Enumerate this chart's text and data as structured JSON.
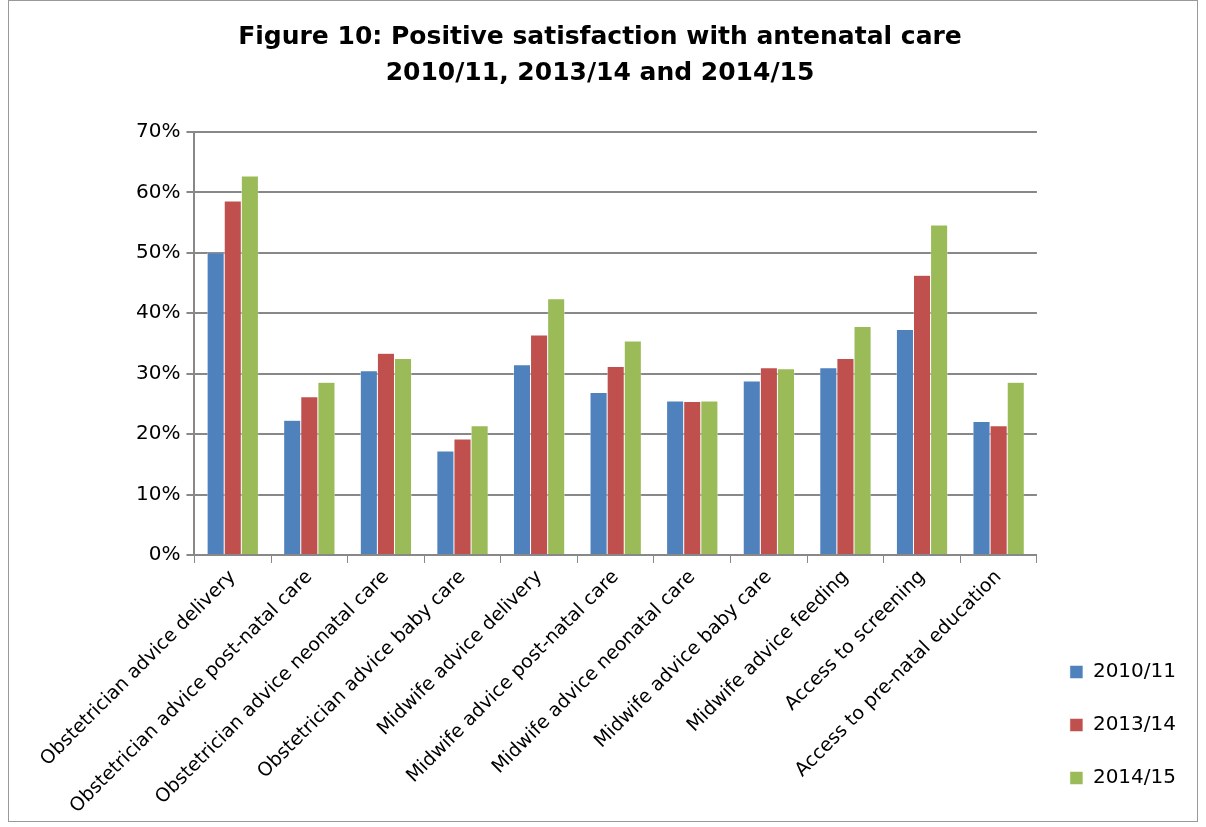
{
  "chart_data": {
    "type": "bar",
    "title": "Figure 10: Positive satisfaction with antenatal care 2010/11, 2013/14 and 2014/15",
    "categories": [
      "Obstetrician advice delivery",
      "Obstetrician advice post-natal care",
      "Obstetrician advice neonatal care",
      "Obstetrician advice baby care",
      "Midwife advice delivery",
      "Midwife advice post-natal care",
      "Midwife advice neonatal care",
      "Midwife advice baby care",
      "Midwife advice feeding",
      "Access to screening",
      "Access to pre-natal education"
    ],
    "series": [
      {
        "name": "2010/11",
        "color": "#4f81bd",
        "values": [
          50.0,
          22.3,
          30.5,
          17.2,
          31.5,
          26.9,
          25.5,
          28.8,
          31.0,
          37.3,
          22.1
        ]
      },
      {
        "name": "2013/14",
        "color": "#c0504d",
        "values": [
          58.6,
          26.2,
          33.4,
          19.2,
          36.4,
          31.2,
          25.4,
          31.0,
          32.5,
          46.3,
          21.4
        ]
      },
      {
        "name": "2014/15",
        "color": "#9bbb59",
        "values": [
          62.7,
          28.6,
          32.5,
          21.4,
          42.4,
          35.4,
          25.5,
          30.8,
          37.8,
          54.6,
          28.6
        ]
      }
    ],
    "ylim": [
      0,
      70
    ],
    "yticks": [
      {
        "value": 0,
        "label": "0%"
      },
      {
        "value": 10,
        "label": "10%"
      },
      {
        "value": 20,
        "label": "20%"
      },
      {
        "value": 30,
        "label": "30%"
      },
      {
        "value": 40,
        "label": "40%"
      },
      {
        "value": 50,
        "label": "50%"
      },
      {
        "value": 60,
        "label": "60%"
      },
      {
        "value": 70,
        "label": "70%"
      }
    ],
    "grid": "y",
    "legend": "right"
  }
}
